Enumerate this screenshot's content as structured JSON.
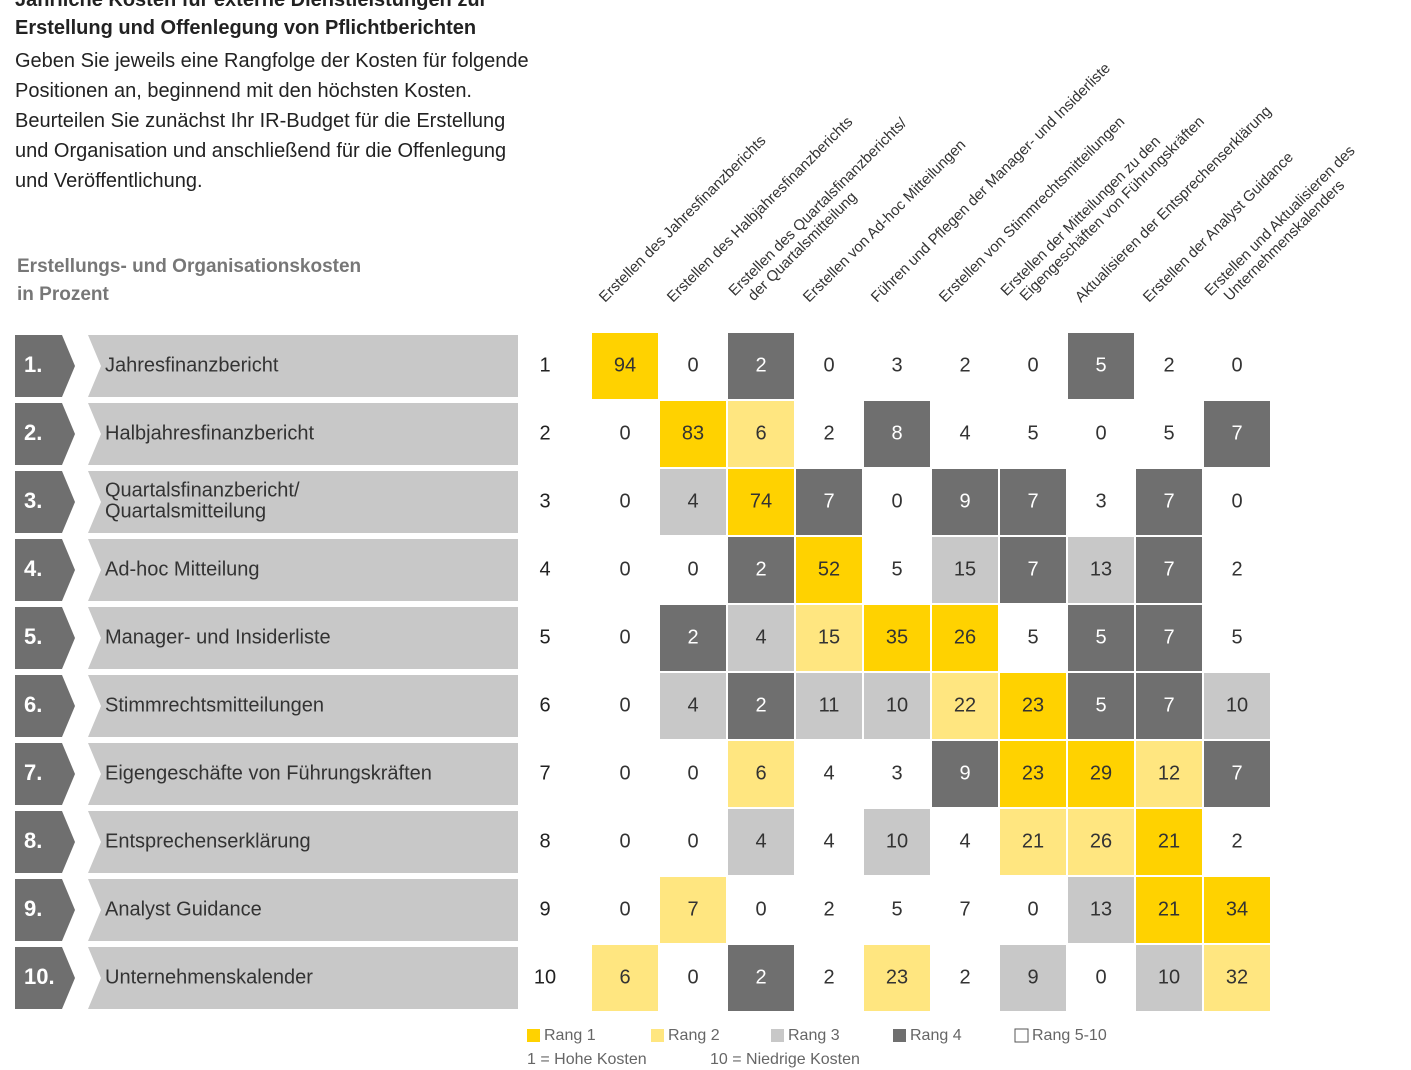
{
  "chart_data": {
    "type": "heatmap",
    "title": [
      "Jährliche Kosten für externe Dienstleistungen zur",
      "Erstellung und Offenlegung von Pflichtberichten"
    ],
    "intro": [
      "Geben Sie jeweils eine Rangfolge der Kosten für folgende",
      "Positionen an, beginnend mit den höchsten Kosten.",
      "Beurteilen Sie zunächst Ihr IR-Budget für die Erstellung",
      "und Organisation und anschließend für die Offenlegung",
      "und Veröffentlichung."
    ],
    "subtitle": [
      "Erstellungs- und Organisationskosten",
      "in Prozent"
    ],
    "columns": [
      [
        "Erstellen des Jahresfinanzberichts"
      ],
      [
        "Erstellen des Halbjahresfinanzberichts"
      ],
      [
        "Erstellen des Quartalsfinanzberichts/",
        "der Quartalsmitteilung"
      ],
      [
        "Erstellen von Ad-hoc Mitteilungen"
      ],
      [
        "Führen und Pflegen der Manager- und Insiderliste"
      ],
      [
        "Erstellen von Stimmrechtsmitteilungen"
      ],
      [
        "Erstellen der Mitteilungen zu den",
        "Eigengeschäften von Führungskräften"
      ],
      [
        "Aktualisieren der Entsprechenserklärung"
      ],
      [
        "Erstellen der Analyst Guidance"
      ],
      [
        "Erstellen und Aktualisieren des",
        "Unternehmenskalenders"
      ]
    ],
    "row_numbers": [
      "1.",
      "2.",
      "3.",
      "4.",
      "5.",
      "6.",
      "7.",
      "8.",
      "9.",
      "10."
    ],
    "rows": [
      [
        "Jahresfinanzbericht"
      ],
      [
        "Halbjahresfinanzbericht"
      ],
      [
        "Quartalsfinanzbericht/",
        "Quartalsmitteilung"
      ],
      [
        "Ad-hoc Mitteilung"
      ],
      [
        "Manager- und Insiderliste"
      ],
      [
        "Stimmrechtsmitteilungen"
      ],
      [
        "Eigengeschäfte von Führungskräften"
      ],
      [
        "Entsprechenserklärung"
      ],
      [
        "Analyst Guidance"
      ],
      [
        "Unternehmenskalender"
      ]
    ],
    "ranks": [
      1,
      2,
      3,
      4,
      5,
      6,
      7,
      8,
      9,
      10
    ],
    "values": [
      [
        94,
        0,
        2,
        0,
        3,
        2,
        0,
        5,
        2,
        0
      ],
      [
        0,
        83,
        6,
        2,
        8,
        4,
        5,
        0,
        5,
        7
      ],
      [
        0,
        4,
        74,
        7,
        0,
        9,
        7,
        3,
        7,
        0
      ],
      [
        0,
        0,
        2,
        52,
        5,
        15,
        7,
        13,
        7,
        2
      ],
      [
        0,
        2,
        4,
        15,
        35,
        26,
        5,
        5,
        7,
        5
      ],
      [
        0,
        4,
        2,
        11,
        10,
        22,
        23,
        5,
        7,
        10
      ],
      [
        0,
        0,
        6,
        4,
        3,
        9,
        23,
        29,
        12,
        7
      ],
      [
        0,
        0,
        4,
        4,
        10,
        4,
        21,
        26,
        21,
        2
      ],
      [
        0,
        7,
        0,
        2,
        5,
        7,
        0,
        13,
        21,
        34
      ],
      [
        6,
        0,
        2,
        2,
        23,
        2,
        9,
        0,
        10,
        32
      ]
    ],
    "levels": [
      [
        0,
        -1,
        3,
        -1,
        -1,
        -1,
        -1,
        3,
        -1,
        -1
      ],
      [
        -1,
        0,
        1,
        -1,
        3,
        -1,
        -1,
        -1,
        -1,
        3
      ],
      [
        -1,
        2,
        0,
        3,
        -1,
        3,
        3,
        -1,
        3,
        -1
      ],
      [
        -1,
        -1,
        3,
        0,
        -1,
        2,
        3,
        2,
        3,
        -1
      ],
      [
        -1,
        3,
        2,
        1,
        0,
        0,
        -1,
        3,
        3,
        -1
      ],
      [
        -1,
        2,
        3,
        2,
        2,
        1,
        0,
        3,
        3,
        2
      ],
      [
        -1,
        -1,
        1,
        -1,
        -1,
        3,
        0,
        0,
        1,
        3
      ],
      [
        -1,
        -1,
        2,
        -1,
        2,
        -1,
        1,
        1,
        0,
        -1
      ],
      [
        -1,
        1,
        -1,
        -1,
        -1,
        -1,
        -1,
        2,
        0,
        0
      ],
      [
        1,
        -1,
        3,
        -1,
        1,
        -1,
        2,
        -1,
        2,
        1
      ]
    ],
    "legend": [
      {
        "name": "Rang 1",
        "color": "#ffd200"
      },
      {
        "name": "Rang 2",
        "color": "#ffe680"
      },
      {
        "name": "Rang 3",
        "color": "#c8c8c8"
      },
      {
        "name": "Rang 4",
        "color": "#6f6f6f"
      },
      {
        "name": "Rang 5-10",
        "color": "#ffffff"
      }
    ],
    "notes": [
      "1 = Hohe Kosten",
      "10 = Niedrige Kosten"
    ]
  }
}
